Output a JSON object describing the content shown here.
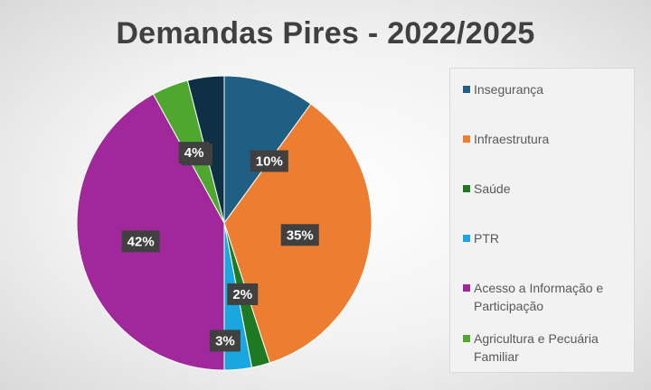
{
  "chart_data": {
    "type": "pie",
    "title": "Demandas Pires - 2022/2025",
    "legend_position": "right",
    "slices": [
      {
        "label": "Insegurança",
        "value": 10,
        "display": "10%",
        "color": "#1f5f84"
      },
      {
        "label": "Infraestrutura",
        "value": 35,
        "display": "35%",
        "color": "#ed7d31"
      },
      {
        "label": "Saúde",
        "value": 2,
        "display": "2%",
        "color": "#1e7a22"
      },
      {
        "label": "PTR",
        "value": 3,
        "display": "3%",
        "color": "#1aa7e0"
      },
      {
        "label": "Acesso a Informação e Participação",
        "value": 42,
        "display": "42%",
        "color": "#a0289b"
      },
      {
        "label": "Agricultura e Pecuária Familiar",
        "value": 4,
        "display": "4%",
        "color": "#4ea72e"
      },
      {
        "label": "",
        "value": 4,
        "display": "4%",
        "color": "#0e2f44"
      }
    ]
  }
}
